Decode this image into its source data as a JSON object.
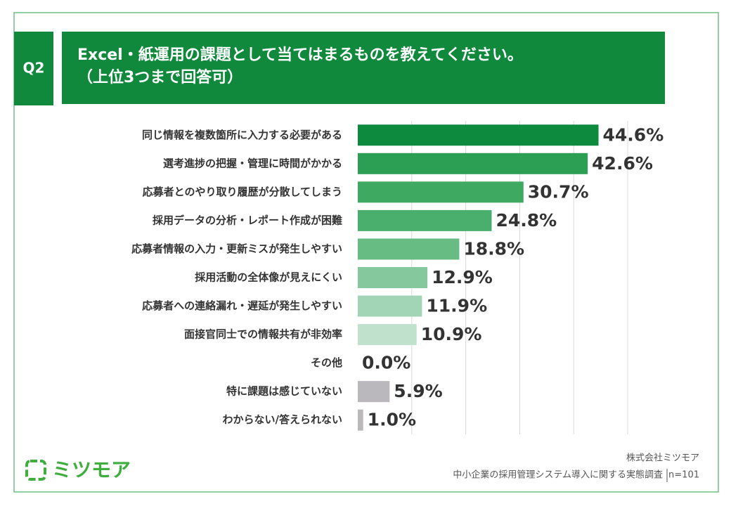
{
  "header": {
    "question": "Q2",
    "title_lines": [
      "Excel・紙運用の課題として当てはまるものを教えてください。",
      "（上位3つまで回答可）"
    ]
  },
  "chart_data": {
    "type": "bar",
    "orientation": "horizontal",
    "categories": [
      "同じ情報を複数箇所に入力する必要がある",
      "選考進捗の把握・管理に時間がかかる",
      "応募者とのやり取り履歴が分散してしまう",
      "採用データの分析・レポート作成が困難",
      "応募者情報の入力・更新ミスが発生しやすい",
      "採用活動の全体像が見えにくい",
      "応募者への連絡漏れ・遅延が発生しやすい",
      "面接官同士での情報共有が非効率",
      "その他",
      "特に課題は感じていない",
      "わからない/答えられない"
    ],
    "values": [
      44.6,
      42.6,
      30.7,
      24.8,
      18.8,
      12.9,
      11.9,
      10.9,
      0.0,
      5.9,
      1.0
    ],
    "value_labels": [
      "44.6%",
      "42.6%",
      "30.7%",
      "24.8%",
      "18.8%",
      "12.9%",
      "11.9%",
      "10.9%",
      "0.0%",
      "5.9%",
      "1.0%"
    ],
    "colors": [
      "#0d8a3d",
      "#2d9f54",
      "#3ea961",
      "#4aaf6c",
      "#67bc83",
      "#85c89d",
      "#a2d5b5",
      "#c0e2cd",
      "#d9eee1",
      "#bab7bd",
      "#bab7bd"
    ],
    "xlim": [
      0,
      50
    ],
    "gridlines": [
      10,
      20,
      30,
      40,
      50
    ],
    "grid": true
  },
  "footer": {
    "logo": "ミツモア",
    "company": "株式会社ミツモア",
    "survey": "中小企業の採用管理システム導入に関する実態調査",
    "sample": "n=101"
  }
}
